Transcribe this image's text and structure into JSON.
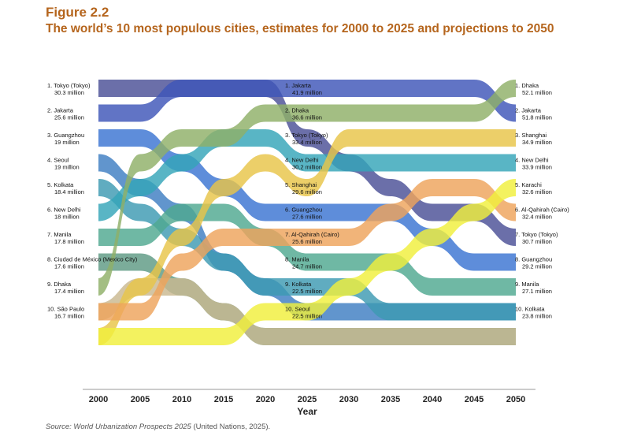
{
  "figure_number": "Figure 2.2",
  "title": "The world’s 10 most populous cities, estimates for 2000 to 2025 and projections to 2050",
  "source_italic": "Source: World Urbanization Prospects 2025",
  "source_rest": " (United Nations, 2025).",
  "chart_data": {
    "type": "area",
    "xlabel": "Year",
    "x": [
      2000,
      2005,
      2010,
      2015,
      2020,
      2025,
      2030,
      2035,
      2040,
      2045,
      2050
    ],
    "label_years": [
      2000,
      2025,
      2050
    ],
    "series": [
      {
        "name": "Tokyo (Tokyo)",
        "color": "#4a4f96",
        "ranks": [
          1,
          1,
          1,
          1,
          1,
          3,
          4,
          5,
          6,
          6,
          7
        ]
      },
      {
        "name": "Jakarta",
        "color": "#3e56b8",
        "ranks": [
          2,
          2,
          1,
          1,
          1,
          1,
          1,
          1,
          1,
          1,
          2
        ]
      },
      {
        "name": "Guangzhou",
        "color": "#3a74d2",
        "ranks": [
          3,
          3,
          4,
          5,
          6,
          6,
          6,
          6,
          7,
          8,
          8
        ]
      },
      {
        "name": "Seoul",
        "color": "#3e7ec2",
        "ranks": [
          4,
          5,
          6,
          8,
          9,
          10,
          10,
          10,
          10,
          10,
          10
        ]
      },
      {
        "name": "Kolkata",
        "color": "#3d9ab2",
        "ranks": [
          5,
          6,
          7,
          8,
          9,
          9,
          9,
          10,
          10,
          10,
          10
        ]
      },
      {
        "name": "New Delhi",
        "color": "#34a5b8",
        "ranks": [
          6,
          5,
          4,
          3,
          3,
          4,
          4,
          4,
          4,
          4,
          4
        ]
      },
      {
        "name": "Manila",
        "color": "#4fa890",
        "ranks": [
          7,
          7,
          6,
          6,
          7,
          8,
          8,
          8,
          9,
          9,
          9
        ]
      },
      {
        "name": "Ciudad de México (Mexico City)",
        "color": "#5e9a84",
        "ranks": [
          8,
          8,
          9,
          10,
          11,
          11,
          11,
          11,
          11,
          11,
          11
        ]
      },
      {
        "name": "Dhaka",
        "color": "#8fb068",
        "ranks": [
          9,
          4,
          3,
          3,
          2,
          2,
          2,
          2,
          2,
          2,
          1
        ]
      },
      {
        "name": "São Paulo",
        "color": "#c9b890",
        "ranks": [
          10,
          9,
          9,
          10,
          11,
          11,
          11,
          11,
          11,
          11,
          11
        ]
      },
      {
        "name": "Shanghai",
        "color": "#e8c548",
        "ranks": [
          11,
          9,
          7,
          5,
          4,
          5,
          3,
          3,
          3,
          3,
          3
        ]
      },
      {
        "name": "Al-Qahirah (Cairo)",
        "color": "#eea35c",
        "ranks": [
          10,
          10,
          8,
          7,
          7,
          7,
          7,
          6,
          5,
          5,
          6
        ]
      },
      {
        "name": "Karachi",
        "color": "#f0ef3c",
        "ranks": [
          11,
          11,
          11,
          11,
          10,
          10,
          9,
          8,
          7,
          6,
          5
        ]
      }
    ],
    "labels_2000": [
      {
        "rank": "1. Tokyo (Tokyo)",
        "value": "30.3 million"
      },
      {
        "rank": "2. Jakarta",
        "value": "25.6 million"
      },
      {
        "rank": "3. Guangzhou",
        "value": "19 million"
      },
      {
        "rank": "4. Seoul",
        "value": "19 million"
      },
      {
        "rank": "5. Kolkata",
        "value": "18.4 million"
      },
      {
        "rank": "6. New Delhi",
        "value": "18 million"
      },
      {
        "rank": "7. Manila",
        "value": "17.8 million"
      },
      {
        "rank": "8. Ciudad de México (Mexico City)",
        "value": "17.6 million"
      },
      {
        "rank": "9. Dhaka",
        "value": "17.4 million"
      },
      {
        "rank": "10. São Paulo",
        "value": "16.7 million"
      }
    ],
    "labels_2025": [
      {
        "rank": "1. Jakarta",
        "value": "41.9 million"
      },
      {
        "rank": "2. Dhaka",
        "value": "36.6 million"
      },
      {
        "rank": "3. Tokyo (Tokyo)",
        "value": "33.4 million"
      },
      {
        "rank": "4. New Delhi",
        "value": "30.2 million"
      },
      {
        "rank": "5. Shanghai",
        "value": "29.6 million"
      },
      {
        "rank": "6. Guangzhou",
        "value": "27.6 million"
      },
      {
        "rank": "7. Al-Qahirah (Cairo)",
        "value": "25.6 million"
      },
      {
        "rank": "8. Manila",
        "value": "24.7 million"
      },
      {
        "rank": "9. Kolkata",
        "value": "22.5 million"
      },
      {
        "rank": "10. Seoul",
        "value": "22.5 million"
      }
    ],
    "labels_2050": [
      {
        "rank": "1. Dhaka",
        "value": "52.1 million"
      },
      {
        "rank": "2. Jakarta",
        "value": "51.8 million"
      },
      {
        "rank": "3. Shanghai",
        "value": "34.9 million"
      },
      {
        "rank": "4. New Delhi",
        "value": "33.9 million"
      },
      {
        "rank": "5. Karachi",
        "value": "32.6 million"
      },
      {
        "rank": "6. Al-Qahirah (Cairo)",
        "value": "32.4 million"
      },
      {
        "rank": "7. Tokyo (Tokyo)",
        "value": "30.7 million"
      },
      {
        "rank": "8. Guangzhou",
        "value": "29.2 million"
      },
      {
        "rank": "9. Manila",
        "value": "27.1 million"
      },
      {
        "rank": "10. Kolkata",
        "value": "23.8 million"
      }
    ]
  }
}
